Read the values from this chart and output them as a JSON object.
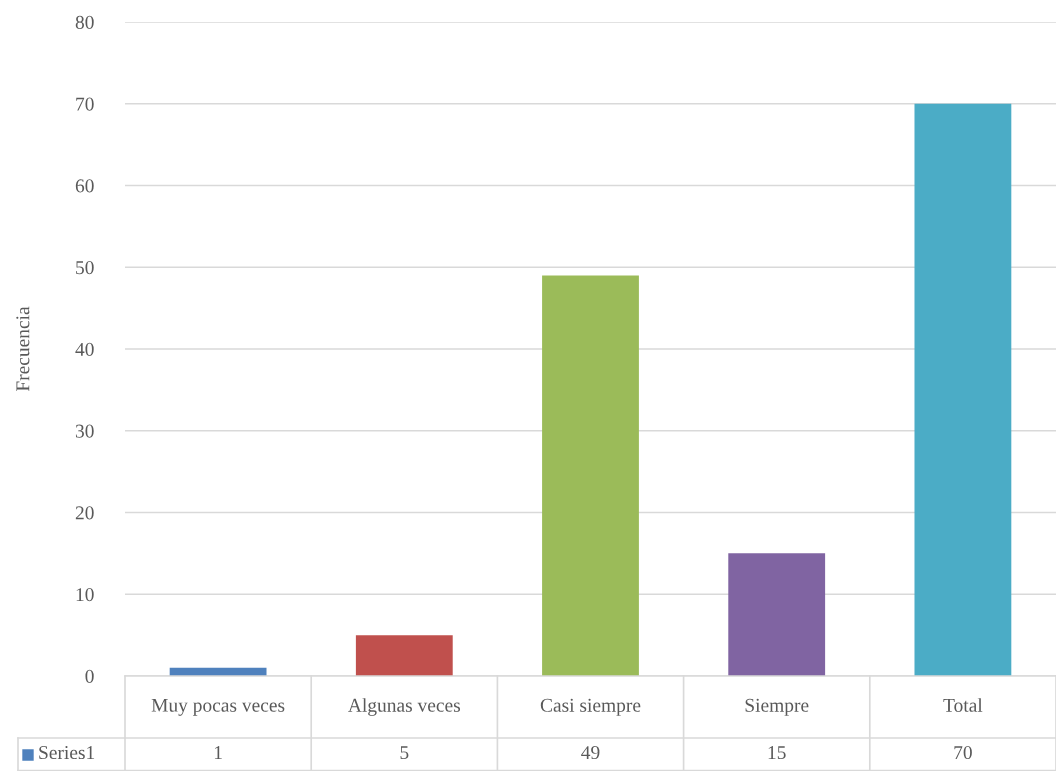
{
  "chart_data": {
    "type": "bar",
    "ylabel": "Frecuencia",
    "categories": [
      "Muy pocas veces",
      "Algunas veces",
      "Casi siempre",
      "Siempre",
      "Total"
    ],
    "series": [
      {
        "name": "Series1",
        "color": "#4f81bd",
        "colors": [
          "#4f81bd",
          "#c0504d",
          "#9bbb59",
          "#8064a2",
          "#4bacc6"
        ],
        "values": [
          1,
          5,
          49,
          15,
          70
        ]
      }
    ],
    "ylim": [
      0,
      80
    ],
    "yticks": [
      0,
      10,
      20,
      30,
      40,
      50,
      60,
      70,
      80
    ],
    "grid": "y",
    "data_labels": true
  }
}
